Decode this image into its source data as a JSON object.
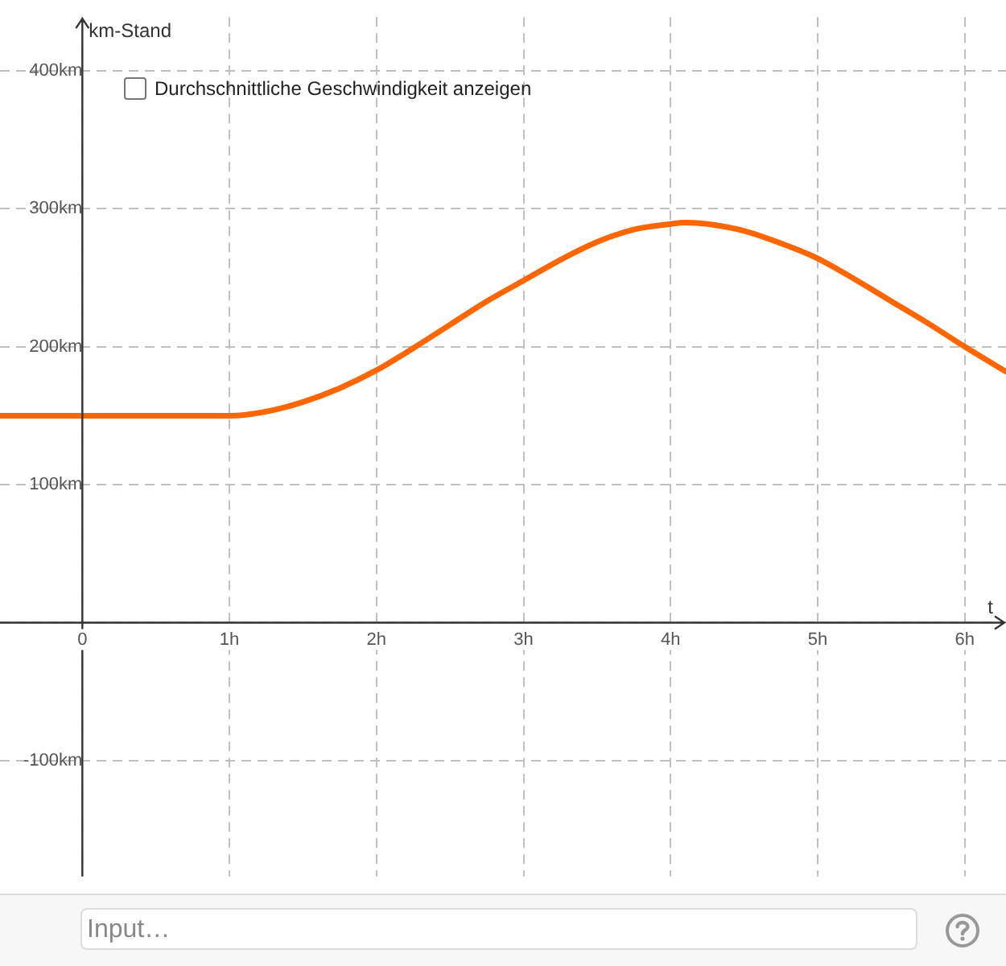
{
  "chart_data": {
    "type": "line",
    "xlabel": "t",
    "ylabel": "km-Stand",
    "xlim": [
      -0.56,
      6.28
    ],
    "ylim": [
      -184,
      439
    ],
    "xticks": [
      {
        "value": 0,
        "label": "0"
      },
      {
        "value": 1,
        "label": "1h"
      },
      {
        "value": 2,
        "label": "2h"
      },
      {
        "value": 3,
        "label": "3h"
      },
      {
        "value": 4,
        "label": "4h"
      },
      {
        "value": 5,
        "label": "5h"
      },
      {
        "value": 6,
        "label": "6h"
      }
    ],
    "yticks": [
      {
        "value": -100,
        "label": "-100km"
      },
      {
        "value": 0,
        "label": null
      },
      {
        "value": 100,
        "label": "100km"
      },
      {
        "value": 200,
        "label": "200km"
      },
      {
        "value": 300,
        "label": "300km"
      },
      {
        "value": 400,
        "label": "400km"
      }
    ],
    "x": [
      -0.56,
      0,
      0.5,
      1,
      1.25,
      1.5,
      1.75,
      2,
      2.25,
      2.5,
      2.75,
      3,
      3.25,
      3.5,
      3.75,
      4,
      4.1,
      4.25,
      4.5,
      4.75,
      5,
      5.25,
      5.5,
      5.75,
      6,
      6.28
    ],
    "series": [
      {
        "color": "#ff6600",
        "values": [
          150,
          150,
          150,
          150,
          153,
          160,
          170,
          183,
          199,
          216,
          233,
          248,
          263,
          276,
          285,
          289,
          290,
          289,
          284,
          275,
          264,
          249,
          233,
          217,
          200,
          182
        ]
      }
    ],
    "grid": true,
    "legend": false,
    "marker": "none",
    "line_style": "solid",
    "annotations": [
      "Durchschnittliche Geschwindigkeit anzeigen",
      "Input…"
    ]
  }
}
